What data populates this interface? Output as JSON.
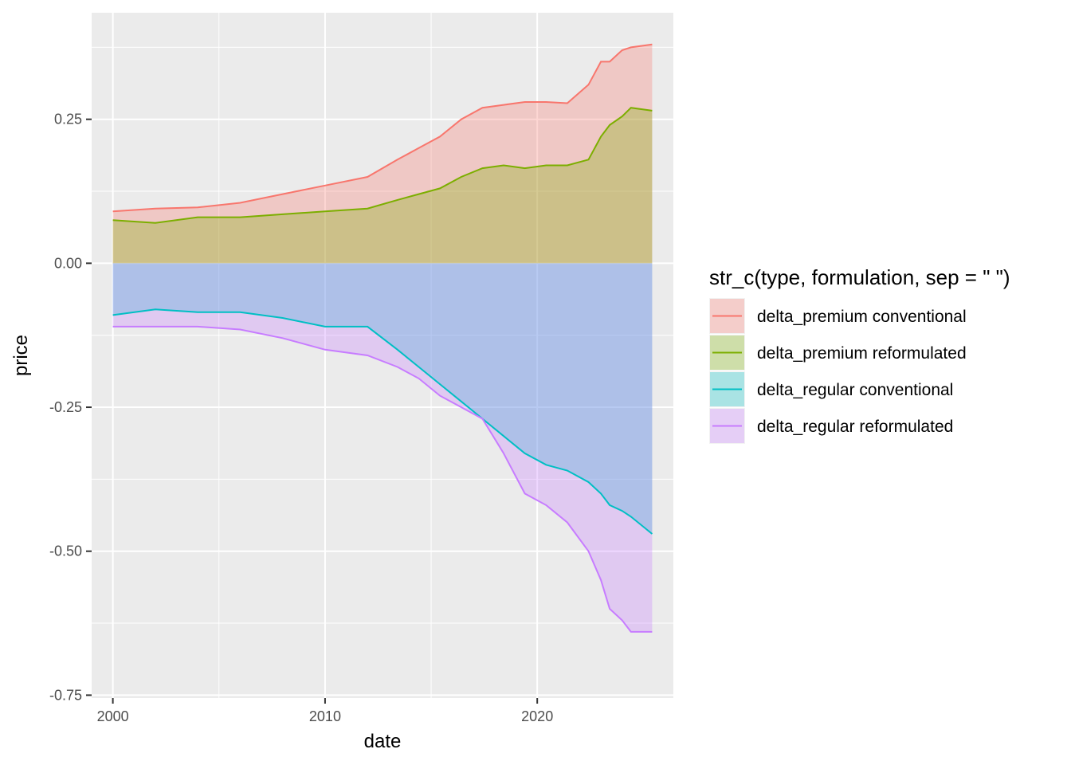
{
  "chart_data": {
    "type": "area",
    "xlabel": "date",
    "ylabel": "price",
    "legend_title": "str_c(type, formulation, sep = \" \")",
    "legend_position": "right",
    "grid": true,
    "xlim": [
      "1999-01-01",
      "2026-06-01"
    ],
    "ylim": [
      -0.755,
      0.435
    ],
    "x_ticks": [
      {
        "value": "2000-01-01",
        "label": "2000"
      },
      {
        "value": "2010-01-01",
        "label": "2010"
      },
      {
        "value": "2020-01-01",
        "label": "2020"
      }
    ],
    "y_ticks": [
      {
        "value": 0.25,
        "label": "0.25"
      },
      {
        "value": 0.0,
        "label": "0.00"
      },
      {
        "value": -0.25,
        "label": "-0.25"
      },
      {
        "value": -0.5,
        "label": "-0.50"
      },
      {
        "value": -0.75,
        "label": "-0.75"
      }
    ],
    "colors": {
      "delta_premium conventional": "#F8766D",
      "delta_premium reformulated": "#7CAE00",
      "delta_regular conventional": "#00BFC4",
      "delta_regular reformulated": "#C77CFF"
    },
    "series": [
      {
        "name": "delta_premium conventional",
        "points": [
          [
            "2000-01-01",
            0.09
          ],
          [
            "2002-01-01",
            0.095
          ],
          [
            "2004-01-01",
            0.097
          ],
          [
            "2006-01-01",
            0.105
          ],
          [
            "2008-01-01",
            0.12
          ],
          [
            "2010-01-01",
            0.135
          ],
          [
            "2012-01-01",
            0.15
          ],
          [
            "2013-06-01",
            0.18
          ],
          [
            "2014-06-01",
            0.2
          ],
          [
            "2015-06-01",
            0.22
          ],
          [
            "2016-06-01",
            0.25
          ],
          [
            "2017-06-01",
            0.27
          ],
          [
            "2018-06-01",
            0.275
          ],
          [
            "2019-06-01",
            0.28
          ],
          [
            "2020-06-01",
            0.28
          ],
          [
            "2021-06-01",
            0.278
          ],
          [
            "2022-06-01",
            0.31
          ],
          [
            "2023-01-01",
            0.35
          ],
          [
            "2023-06-01",
            0.35
          ],
          [
            "2024-01-01",
            0.37
          ],
          [
            "2024-06-01",
            0.375
          ],
          [
            "2025-06-01",
            0.38
          ]
        ]
      },
      {
        "name": "delta_premium reformulated",
        "points": [
          [
            "2000-01-01",
            0.075
          ],
          [
            "2002-01-01",
            0.07
          ],
          [
            "2004-01-01",
            0.08
          ],
          [
            "2006-01-01",
            0.08
          ],
          [
            "2008-01-01",
            0.085
          ],
          [
            "2010-01-01",
            0.09
          ],
          [
            "2012-01-01",
            0.095
          ],
          [
            "2013-06-01",
            0.11
          ],
          [
            "2014-06-01",
            0.12
          ],
          [
            "2015-06-01",
            0.13
          ],
          [
            "2016-06-01",
            0.15
          ],
          [
            "2017-06-01",
            0.165
          ],
          [
            "2018-06-01",
            0.17
          ],
          [
            "2019-06-01",
            0.165
          ],
          [
            "2020-06-01",
            0.17
          ],
          [
            "2021-06-01",
            0.17
          ],
          [
            "2022-06-01",
            0.18
          ],
          [
            "2023-01-01",
            0.22
          ],
          [
            "2023-06-01",
            0.24
          ],
          [
            "2024-01-01",
            0.255
          ],
          [
            "2024-06-01",
            0.27
          ],
          [
            "2025-06-01",
            0.265
          ]
        ]
      },
      {
        "name": "delta_regular conventional",
        "points": [
          [
            "2000-01-01",
            -0.09
          ],
          [
            "2002-01-01",
            -0.08
          ],
          [
            "2004-01-01",
            -0.085
          ],
          [
            "2006-01-01",
            -0.085
          ],
          [
            "2008-01-01",
            -0.095
          ],
          [
            "2010-01-01",
            -0.11
          ],
          [
            "2012-01-01",
            -0.11
          ],
          [
            "2013-06-01",
            -0.15
          ],
          [
            "2014-06-01",
            -0.18
          ],
          [
            "2015-06-01",
            -0.21
          ],
          [
            "2016-06-01",
            -0.24
          ],
          [
            "2017-06-01",
            -0.27
          ],
          [
            "2018-06-01",
            -0.3
          ],
          [
            "2019-06-01",
            -0.33
          ],
          [
            "2020-06-01",
            -0.35
          ],
          [
            "2021-06-01",
            -0.36
          ],
          [
            "2022-06-01",
            -0.38
          ],
          [
            "2023-01-01",
            -0.4
          ],
          [
            "2023-06-01",
            -0.42
          ],
          [
            "2024-01-01",
            -0.43
          ],
          [
            "2024-06-01",
            -0.44
          ],
          [
            "2025-06-01",
            -0.47
          ]
        ]
      },
      {
        "name": "delta_regular reformulated",
        "points": [
          [
            "2000-01-01",
            -0.11
          ],
          [
            "2002-01-01",
            -0.11
          ],
          [
            "2004-01-01",
            -0.11
          ],
          [
            "2006-01-01",
            -0.115
          ],
          [
            "2008-01-01",
            -0.13
          ],
          [
            "2010-01-01",
            -0.15
          ],
          [
            "2012-01-01",
            -0.16
          ],
          [
            "2013-06-01",
            -0.18
          ],
          [
            "2014-06-01",
            -0.2
          ],
          [
            "2015-06-01",
            -0.23
          ],
          [
            "2016-06-01",
            -0.25
          ],
          [
            "2017-06-01",
            -0.27
          ],
          [
            "2018-06-01",
            -0.33
          ],
          [
            "2019-06-01",
            -0.4
          ],
          [
            "2020-06-01",
            -0.42
          ],
          [
            "2021-06-01",
            -0.45
          ],
          [
            "2022-06-01",
            -0.5
          ],
          [
            "2023-01-01",
            -0.55
          ],
          [
            "2023-06-01",
            -0.6
          ],
          [
            "2024-01-01",
            -0.62
          ],
          [
            "2024-06-01",
            -0.64
          ],
          [
            "2025-06-01",
            -0.64
          ]
        ]
      }
    ]
  }
}
